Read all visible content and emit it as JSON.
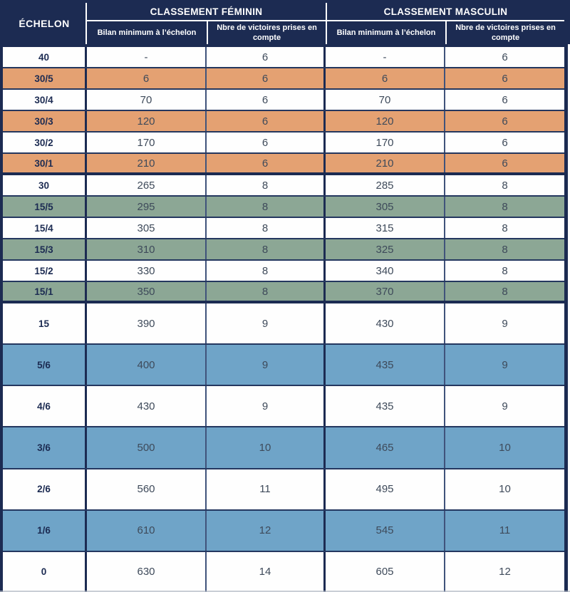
{
  "table": {
    "corner_header": "ÉCHELON",
    "groups": [
      {
        "label": "CLASSEMENT FÉMININ"
      },
      {
        "label": "CLASSEMENT MASCULIN"
      }
    ],
    "sub_headers": [
      "Bilan minimum à l’échelon",
      "Nbre de victoires prises en compte",
      "Bilan minimum à l’échelon",
      "Nbre de victoires prises en compte"
    ],
    "rows": [
      {
        "echelon": "40",
        "f_bilan": "-",
        "f_victoires": "6",
        "m_bilan": "-",
        "m_victoires": "6",
        "tone": "white",
        "size": "small",
        "thick_border_after": false
      },
      {
        "echelon": "30/5",
        "f_bilan": "6",
        "f_victoires": "6",
        "m_bilan": "6",
        "m_victoires": "6",
        "tone": "orange",
        "size": "small",
        "thick_border_after": false
      },
      {
        "echelon": "30/4",
        "f_bilan": "70",
        "f_victoires": "6",
        "m_bilan": "70",
        "m_victoires": "6",
        "tone": "white",
        "size": "small",
        "thick_border_after": false
      },
      {
        "echelon": "30/3",
        "f_bilan": "120",
        "f_victoires": "6",
        "m_bilan": "120",
        "m_victoires": "6",
        "tone": "orange",
        "size": "small",
        "thick_border_after": false
      },
      {
        "echelon": "30/2",
        "f_bilan": "170",
        "f_victoires": "6",
        "m_bilan": "170",
        "m_victoires": "6",
        "tone": "white",
        "size": "small",
        "thick_border_after": false
      },
      {
        "echelon": "30/1",
        "f_bilan": "210",
        "f_victoires": "6",
        "m_bilan": "210",
        "m_victoires": "6",
        "tone": "orange",
        "size": "small",
        "thick_border_after": true
      },
      {
        "echelon": "30",
        "f_bilan": "265",
        "f_victoires": "8",
        "m_bilan": "285",
        "m_victoires": "8",
        "tone": "white",
        "size": "small",
        "thick_border_after": false
      },
      {
        "echelon": "15/5",
        "f_bilan": "295",
        "f_victoires": "8",
        "m_bilan": "305",
        "m_victoires": "8",
        "tone": "green",
        "size": "small",
        "thick_border_after": false
      },
      {
        "echelon": "15/4",
        "f_bilan": "305",
        "f_victoires": "8",
        "m_bilan": "315",
        "m_victoires": "8",
        "tone": "white",
        "size": "small",
        "thick_border_after": false
      },
      {
        "echelon": "15/3",
        "f_bilan": "310",
        "f_victoires": "8",
        "m_bilan": "325",
        "m_victoires": "8",
        "tone": "green",
        "size": "small",
        "thick_border_after": false
      },
      {
        "echelon": "15/2",
        "f_bilan": "330",
        "f_victoires": "8",
        "m_bilan": "340",
        "m_victoires": "8",
        "tone": "white",
        "size": "small",
        "thick_border_after": false
      },
      {
        "echelon": "15/1",
        "f_bilan": "350",
        "f_victoires": "8",
        "m_bilan": "370",
        "m_victoires": "8",
        "tone": "green",
        "size": "small",
        "thick_border_after": true
      },
      {
        "echelon": "15",
        "f_bilan": "390",
        "f_victoires": "9",
        "m_bilan": "430",
        "m_victoires": "9",
        "tone": "white",
        "size": "large",
        "thick_border_after": false
      },
      {
        "echelon": "5/6",
        "f_bilan": "400",
        "f_victoires": "9",
        "m_bilan": "435",
        "m_victoires": "9",
        "tone": "blue",
        "size": "large",
        "thick_border_after": false
      },
      {
        "echelon": "4/6",
        "f_bilan": "430",
        "f_victoires": "9",
        "m_bilan": "435",
        "m_victoires": "9",
        "tone": "white",
        "size": "large",
        "thick_border_after": false
      },
      {
        "echelon": "3/6",
        "f_bilan": "500",
        "f_victoires": "10",
        "m_bilan": "465",
        "m_victoires": "10",
        "tone": "blue",
        "size": "large",
        "thick_border_after": false
      },
      {
        "echelon": "2/6",
        "f_bilan": "560",
        "f_victoires": "11",
        "m_bilan": "495",
        "m_victoires": "10",
        "tone": "white",
        "size": "large",
        "thick_border_after": false
      },
      {
        "echelon": "1/6",
        "f_bilan": "610",
        "f_victoires": "12",
        "m_bilan": "545",
        "m_victoires": "11",
        "tone": "blue",
        "size": "large",
        "thick_border_after": false
      },
      {
        "echelon": "0",
        "f_bilan": "630",
        "f_victoires": "14",
        "m_bilan": "605",
        "m_victoires": "12",
        "tone": "white",
        "size": "large",
        "thick_border_after": false
      }
    ]
  },
  "colors": {
    "header_navy": "#1C2B52",
    "row_white": "#FEFEFE",
    "row_orange": "#E4A172",
    "row_green": "#8CA795",
    "row_blue": "#6FA4C8",
    "grid_line": "#24375F",
    "body_text": "#3E4A5A"
  }
}
